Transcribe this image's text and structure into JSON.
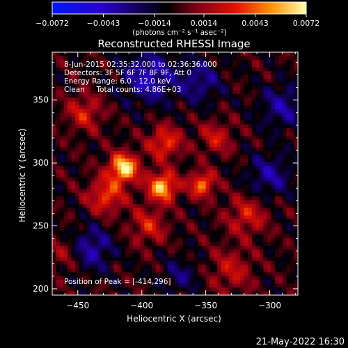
{
  "chart_data": {
    "type": "heatmap",
    "title": "Reconstructed RHESSI Image",
    "xlabel": "Heliocentric X (arcsec)",
    "ylabel": "Heliocentric Y (arcsec)",
    "xlim": [
      -470,
      -278
    ],
    "ylim": [
      195,
      388
    ],
    "x_ticks": [
      -450,
      -400,
      -350,
      -300
    ],
    "x_tick_labels": [
      "−450",
      "−400",
      "−350",
      "−300"
    ],
    "y_ticks": [
      200,
      250,
      300,
      350
    ],
    "y_tick_labels": [
      "200",
      "250",
      "300",
      "350"
    ],
    "colorbar": {
      "range": [
        -0.0072,
        0.0072
      ],
      "ticks": [
        -0.0072,
        -0.0043,
        -0.0014,
        0.0014,
        0.0043,
        0.0072
      ],
      "tick_labels": [
        "−0.0072",
        "−0.0043",
        "−0.0014",
        "0.0014",
        "0.0043",
        "0.0072"
      ],
      "label": "(photons cm⁻² s⁻¹ asec⁻²)"
    },
    "info_lines": [
      "8-Jun-2015 02:35:32.000 to 02:36:36.000",
      "Detectors: 3F 5F 6F 7F 8F 9F, Att 0",
      "Energy Range: 6.0 - 12.0 keV",
      "Clean     Total counts: 4.86E+03"
    ],
    "peak_label": "Position of Peak = [-414,296]",
    "peak": [
      -414,
      296
    ],
    "sources": [
      {
        "x": -414,
        "y": 296,
        "sigma": 8,
        "amp": 0.0072
      },
      {
        "x": -384,
        "y": 281,
        "sigma": 8,
        "amp": 0.0064
      },
      {
        "x": -353,
        "y": 283,
        "sigma": 7,
        "amp": 0.005
      },
      {
        "x": -382,
        "y": 316,
        "sigma": 9,
        "amp": 0.004
      },
      {
        "x": -428,
        "y": 274,
        "sigma": 10,
        "amp": 0.004
      },
      {
        "x": -445,
        "y": 340,
        "sigma": 10,
        "amp": 0.003
      },
      {
        "x": -318,
        "y": 258,
        "sigma": 11,
        "amp": 0.003
      },
      {
        "x": -330,
        "y": 215,
        "sigma": 12,
        "amp": 0.0025
      },
      {
        "x": -460,
        "y": 228,
        "sigma": 10,
        "amp": 0.002
      },
      {
        "x": -395,
        "y": 250,
        "sigma": 10,
        "amp": 0.003
      },
      {
        "x": -342,
        "y": 320,
        "sigma": 9,
        "amp": 0.0028
      }
    ],
    "negative_regions": [
      {
        "x": -395,
        "y": 368,
        "sigma": 14,
        "amp": -0.004
      },
      {
        "x": -440,
        "y": 232,
        "sigma": 12,
        "amp": -0.0035
      },
      {
        "x": -300,
        "y": 290,
        "sigma": 12,
        "amp": -0.003
      },
      {
        "x": -355,
        "y": 365,
        "sigma": 12,
        "amp": -0.0028
      },
      {
        "x": -370,
        "y": 210,
        "sigma": 10,
        "amp": -0.0022
      },
      {
        "x": -290,
        "y": 345,
        "sigma": 12,
        "amp": -0.003
      }
    ]
  },
  "footer": {
    "timestamp": "21-May-2022 16:30"
  }
}
